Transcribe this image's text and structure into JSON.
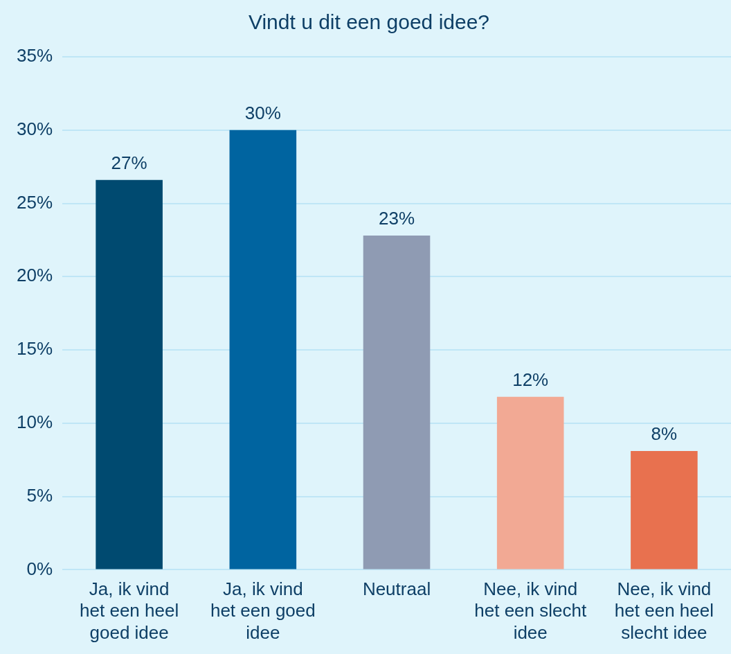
{
  "chart_data": {
    "type": "bar",
    "title": "Vindt u dit een goed idee?",
    "categories": [
      "Ja, ik vind het een heel goed idee",
      "Ja, ik vind het een goed idee",
      "Neutraal",
      "Nee, ik vind het een slecht idee",
      "Nee, ik vind het een heel slecht idee"
    ],
    "values": [
      26.6,
      30,
      22.8,
      11.8,
      8.1
    ],
    "value_labels": [
      "27%",
      "30%",
      "23%",
      "12%",
      "8%"
    ],
    "colors": [
      "#004a70",
      "#0064a0",
      "#8f9bb3",
      "#f2a994",
      "#e8714f"
    ],
    "ylim": [
      0,
      35
    ],
    "yticks": [
      {
        "value": 0,
        "label": "0%"
      },
      {
        "value": 5,
        "label": "5%"
      },
      {
        "value": 10,
        "label": "10%"
      },
      {
        "value": 15,
        "label": "15%"
      },
      {
        "value": 20,
        "label": "20%"
      },
      {
        "value": 25,
        "label": "25%"
      },
      {
        "value": 30,
        "label": "30%"
      },
      {
        "value": 35,
        "label": "35%"
      }
    ],
    "grid": "y",
    "legend": false
  }
}
